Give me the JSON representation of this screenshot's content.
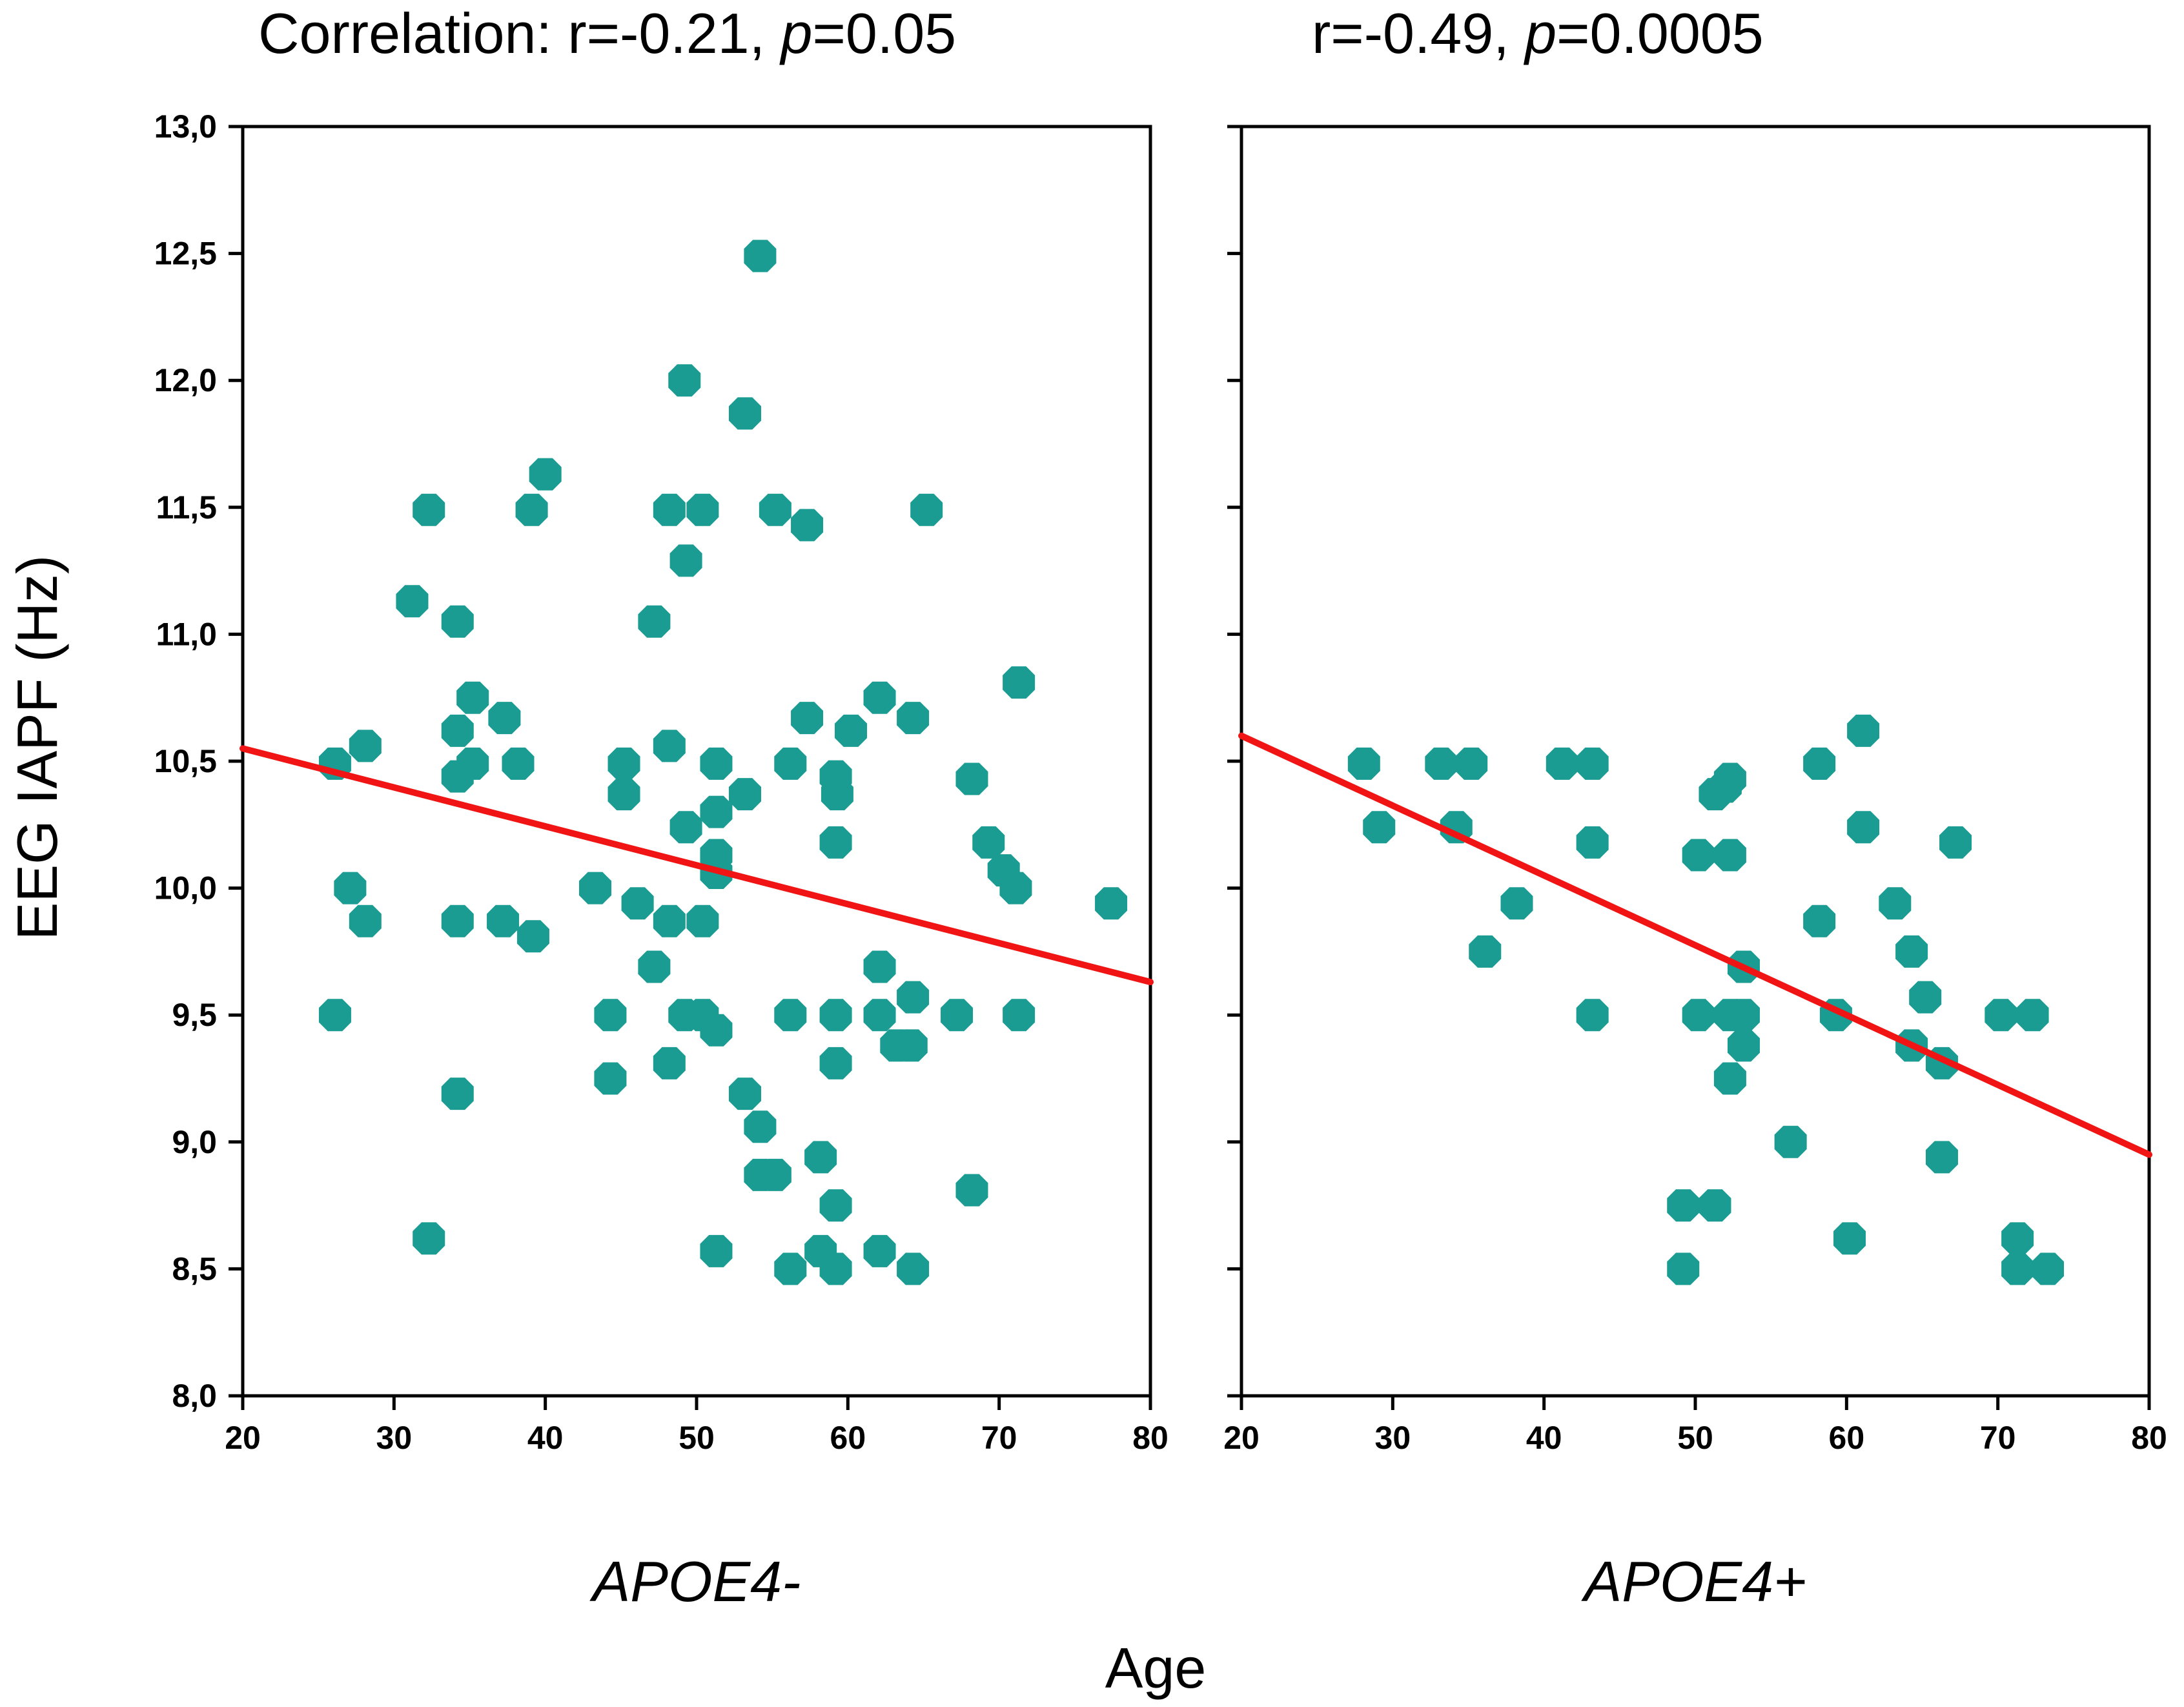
{
  "chart_data": [
    {
      "type": "scatter",
      "title_prefix": "Correlation: r=-0.21, ",
      "title_p": "p",
      "title_suffix": "=0.05",
      "group_label": "APOE4-",
      "ylabel": "EEG IAPF (Hz)",
      "xlabel": "Age",
      "xlim": [
        20,
        80
      ],
      "ylim": [
        8.0,
        13.0
      ],
      "xticks": [
        "20",
        "30",
        "40",
        "50",
        "60",
        "70",
        "80"
      ],
      "yticks": [
        "8,0",
        "8,5",
        "9,0",
        "9,5",
        "10,0",
        "10,5",
        "11,0",
        "11,5",
        "12,0",
        "12,5",
        "13,0"
      ],
      "point_color": "#1a9c93",
      "fit_color": "#f01414",
      "fit_line": {
        "x": [
          20,
          80
        ],
        "y": [
          10.55,
          9.63
        ]
      },
      "points": [
        [
          54.2,
          12.49
        ],
        [
          49.2,
          12.0
        ],
        [
          53.2,
          11.87
        ],
        [
          40.0,
          11.63
        ],
        [
          32.3,
          11.49
        ],
        [
          39.1,
          11.49
        ],
        [
          48.2,
          11.49
        ],
        [
          50.4,
          11.49
        ],
        [
          55.2,
          11.49
        ],
        [
          65.2,
          11.49
        ],
        [
          57.3,
          11.43
        ],
        [
          49.3,
          11.29
        ],
        [
          31.2,
          11.13
        ],
        [
          34.2,
          11.05
        ],
        [
          47.2,
          11.05
        ],
        [
          71.3,
          10.81
        ],
        [
          35.2,
          10.75
        ],
        [
          62.1,
          10.75
        ],
        [
          37.3,
          10.67
        ],
        [
          57.3,
          10.67
        ],
        [
          64.3,
          10.67
        ],
        [
          34.2,
          10.62
        ],
        [
          60.2,
          10.62
        ],
        [
          28.1,
          10.56
        ],
        [
          48.2,
          10.56
        ],
        [
          26.1,
          10.49
        ],
        [
          35.2,
          10.49
        ],
        [
          38.2,
          10.49
        ],
        [
          45.2,
          10.49
        ],
        [
          51.3,
          10.49
        ],
        [
          56.2,
          10.49
        ],
        [
          34.2,
          10.44
        ],
        [
          59.2,
          10.44
        ],
        [
          68.2,
          10.43
        ],
        [
          45.2,
          10.37
        ],
        [
          53.2,
          10.37
        ],
        [
          59.3,
          10.37
        ],
        [
          51.3,
          10.3
        ],
        [
          49.3,
          10.24
        ],
        [
          59.2,
          10.18
        ],
        [
          69.3,
          10.18
        ],
        [
          51.3,
          10.13
        ],
        [
          70.3,
          10.07
        ],
        [
          51.3,
          10.06
        ],
        [
          27.1,
          10.0
        ],
        [
          43.3,
          10.0
        ],
        [
          71.1,
          10.0
        ],
        [
          46.1,
          9.94
        ],
        [
          77.4,
          9.94
        ],
        [
          28.1,
          9.87
        ],
        [
          34.2,
          9.87
        ],
        [
          37.2,
          9.87
        ],
        [
          48.2,
          9.87
        ],
        [
          50.4,
          9.87
        ],
        [
          39.2,
          9.81
        ],
        [
          47.2,
          9.69
        ],
        [
          62.1,
          9.69
        ],
        [
          26.1,
          9.5
        ],
        [
          44.3,
          9.5
        ],
        [
          49.2,
          9.5
        ],
        [
          50.4,
          9.5
        ],
        [
          56.2,
          9.5
        ],
        [
          59.2,
          9.5
        ],
        [
          62.1,
          9.5
        ],
        [
          67.2,
          9.5
        ],
        [
          71.3,
          9.5
        ],
        [
          51.3,
          9.44
        ],
        [
          64.3,
          9.57
        ],
        [
          63.2,
          9.38
        ],
        [
          64.2,
          9.38
        ],
        [
          48.2,
          9.31
        ],
        [
          59.2,
          9.31
        ],
        [
          44.3,
          9.25
        ],
        [
          34.2,
          9.19
        ],
        [
          53.2,
          9.19
        ],
        [
          54.2,
          9.06
        ],
        [
          58.2,
          8.94
        ],
        [
          54.2,
          8.87
        ],
        [
          55.2,
          8.87
        ],
        [
          68.2,
          8.81
        ],
        [
          59.2,
          8.75
        ],
        [
          32.3,
          8.62
        ],
        [
          51.3,
          8.57
        ],
        [
          58.2,
          8.57
        ],
        [
          62.1,
          8.57
        ],
        [
          56.2,
          8.5
        ],
        [
          59.2,
          8.5
        ],
        [
          64.3,
          8.5
        ]
      ]
    },
    {
      "type": "scatter",
      "title_prefix": "r=-0.49, ",
      "title_p": "p",
      "title_suffix": "=0.0005",
      "group_label": "APOE4+",
      "xlim": [
        20,
        80
      ],
      "ylim": [
        8.0,
        13.0
      ],
      "xticks": [
        "20",
        "30",
        "40",
        "50",
        "60",
        "70",
        "80"
      ],
      "point_color": "#1a9c93",
      "fit_color": "#f01414",
      "fit_line": {
        "x": [
          20,
          80
        ],
        "y": [
          10.6,
          8.95
        ]
      },
      "points": [
        [
          61.1,
          10.62
        ],
        [
          28.1,
          10.49
        ],
        [
          33.2,
          10.49
        ],
        [
          35.2,
          10.49
        ],
        [
          41.2,
          10.49
        ],
        [
          43.2,
          10.49
        ],
        [
          58.2,
          10.49
        ],
        [
          52.3,
          10.43
        ],
        [
          52.0,
          10.4
        ],
        [
          51.3,
          10.37
        ],
        [
          29.1,
          10.24
        ],
        [
          34.2,
          10.24
        ],
        [
          61.1,
          10.24
        ],
        [
          43.2,
          10.18
        ],
        [
          67.2,
          10.18
        ],
        [
          50.2,
          10.13
        ],
        [
          52.3,
          10.13
        ],
        [
          38.2,
          9.94
        ],
        [
          63.2,
          9.94
        ],
        [
          58.2,
          9.87
        ],
        [
          36.1,
          9.75
        ],
        [
          64.3,
          9.75
        ],
        [
          53.2,
          9.69
        ],
        [
          65.2,
          9.57
        ],
        [
          43.2,
          9.5
        ],
        [
          50.2,
          9.5
        ],
        [
          52.3,
          9.5
        ],
        [
          53.2,
          9.5
        ],
        [
          59.3,
          9.5
        ],
        [
          70.2,
          9.5
        ],
        [
          72.3,
          9.5
        ],
        [
          53.2,
          9.38
        ],
        [
          64.3,
          9.38
        ],
        [
          66.3,
          9.31
        ],
        [
          52.3,
          9.25
        ],
        [
          56.3,
          9.0
        ],
        [
          66.3,
          8.94
        ],
        [
          49.2,
          8.75
        ],
        [
          51.3,
          8.75
        ],
        [
          60.2,
          8.62
        ],
        [
          71.3,
          8.62
        ],
        [
          49.2,
          8.5
        ],
        [
          71.3,
          8.5
        ],
        [
          73.3,
          8.5
        ]
      ]
    }
  ]
}
